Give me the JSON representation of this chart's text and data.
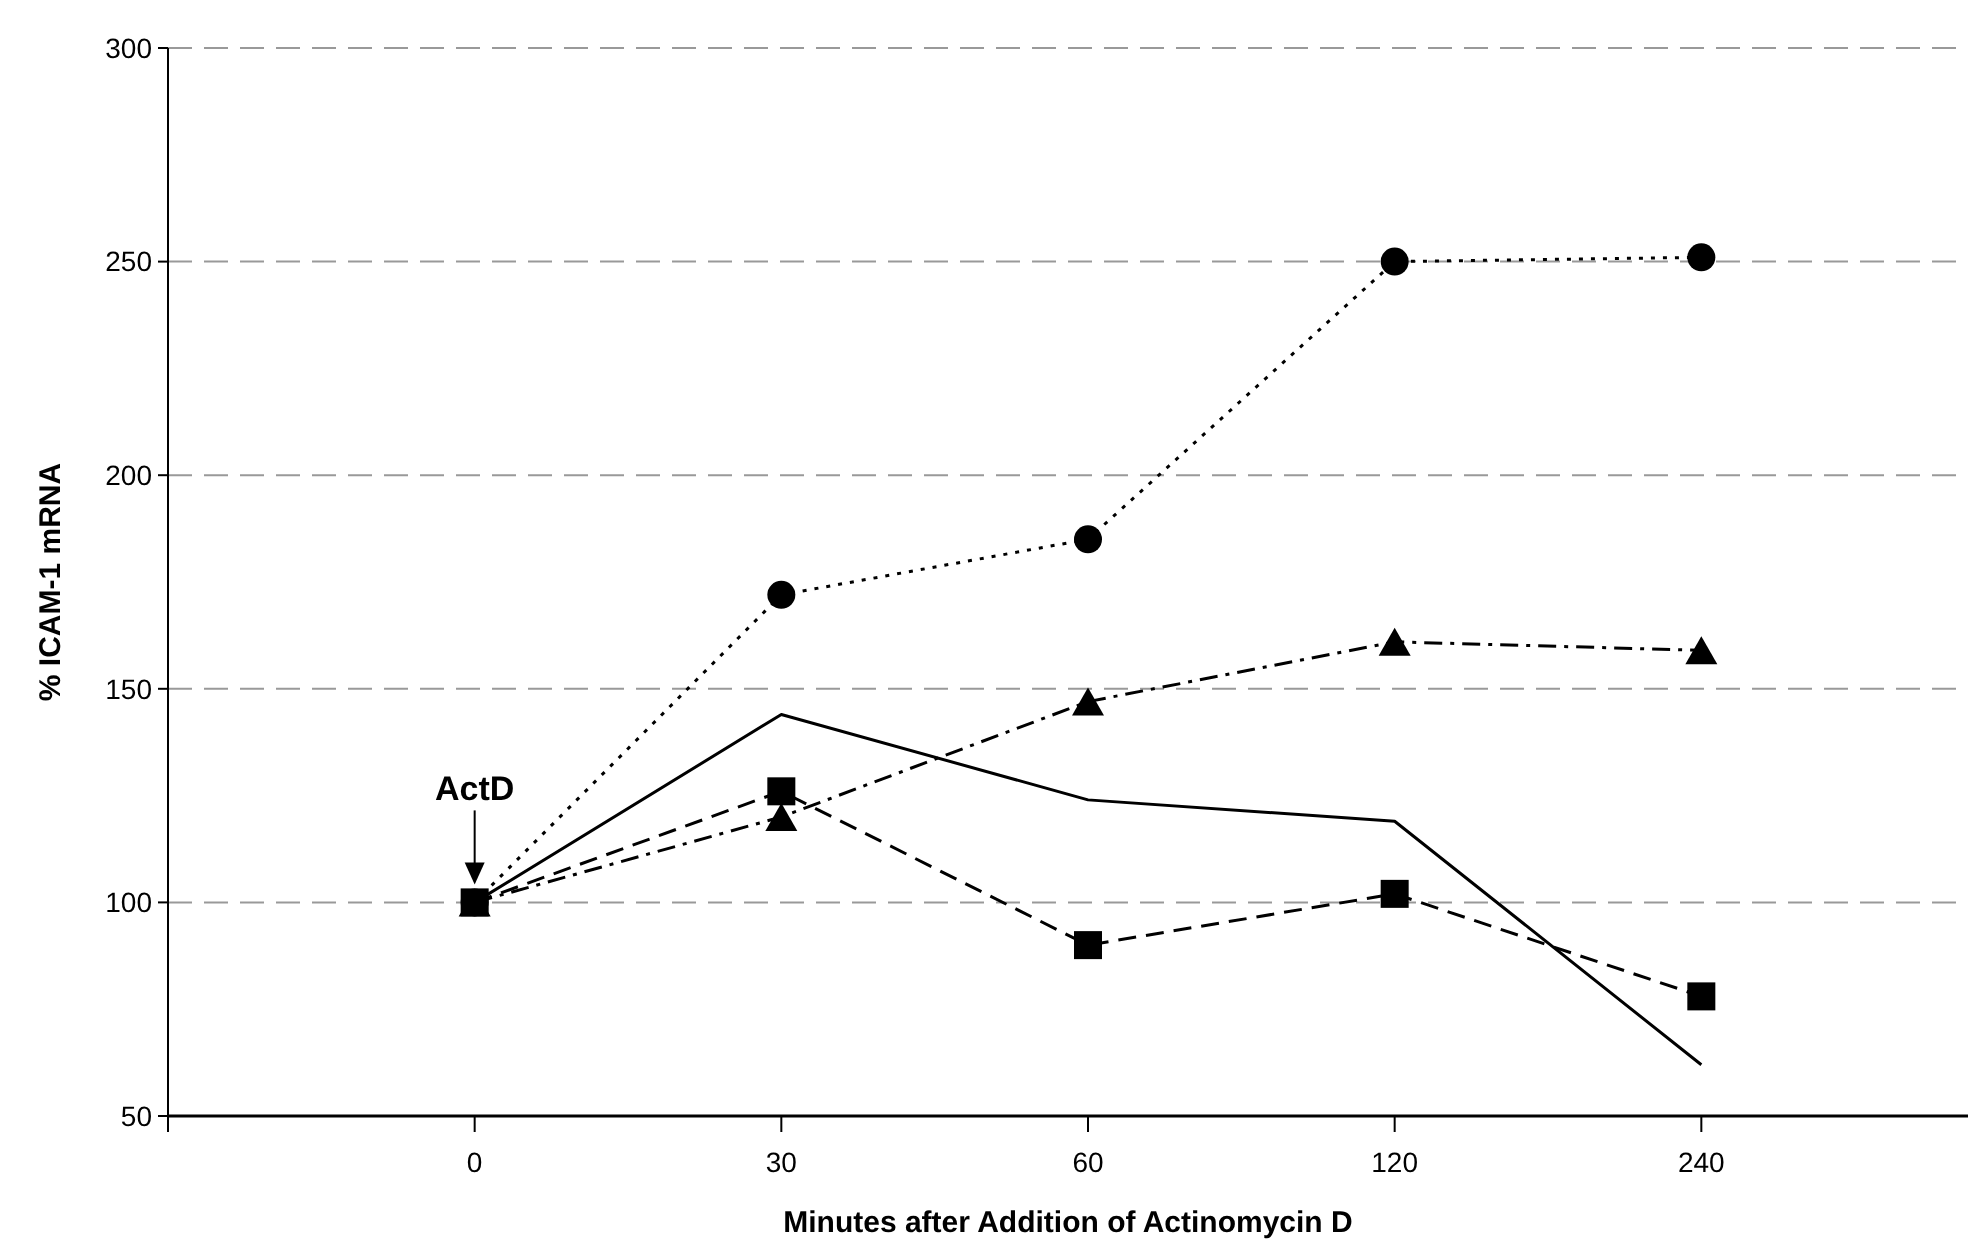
{
  "chart_data": {
    "type": "line",
    "xlabel": "Minutes after Addition of Actinomycin D",
    "ylabel": "% ICAM-1 mRNA",
    "categories": [
      "0",
      "30",
      "60",
      "120",
      "240"
    ],
    "series": [
      {
        "color": "#000000",
        "marker": "circle",
        "line_style": "dotted",
        "values": [
          100,
          172,
          185,
          250,
          251
        ]
      },
      {
        "color": "#000000",
        "marker": "triangle",
        "line_style": "dashdot",
        "values": [
          100,
          120,
          147,
          161,
          159
        ]
      },
      {
        "color": "#000000",
        "marker": "square",
        "line_style": "dashed",
        "values": [
          100,
          126,
          90,
          102,
          78
        ]
      },
      {
        "color": "#000000",
        "marker": "none",
        "line_style": "solid",
        "values": [
          100,
          144,
          124,
          119,
          62
        ]
      }
    ],
    "ylim": [
      50,
      300
    ],
    "yticks": [
      50,
      100,
      150,
      200,
      250,
      300
    ],
    "grid": "y",
    "annotations": [
      {
        "text": "ActD",
        "x": "0",
        "y": 100
      }
    ]
  }
}
